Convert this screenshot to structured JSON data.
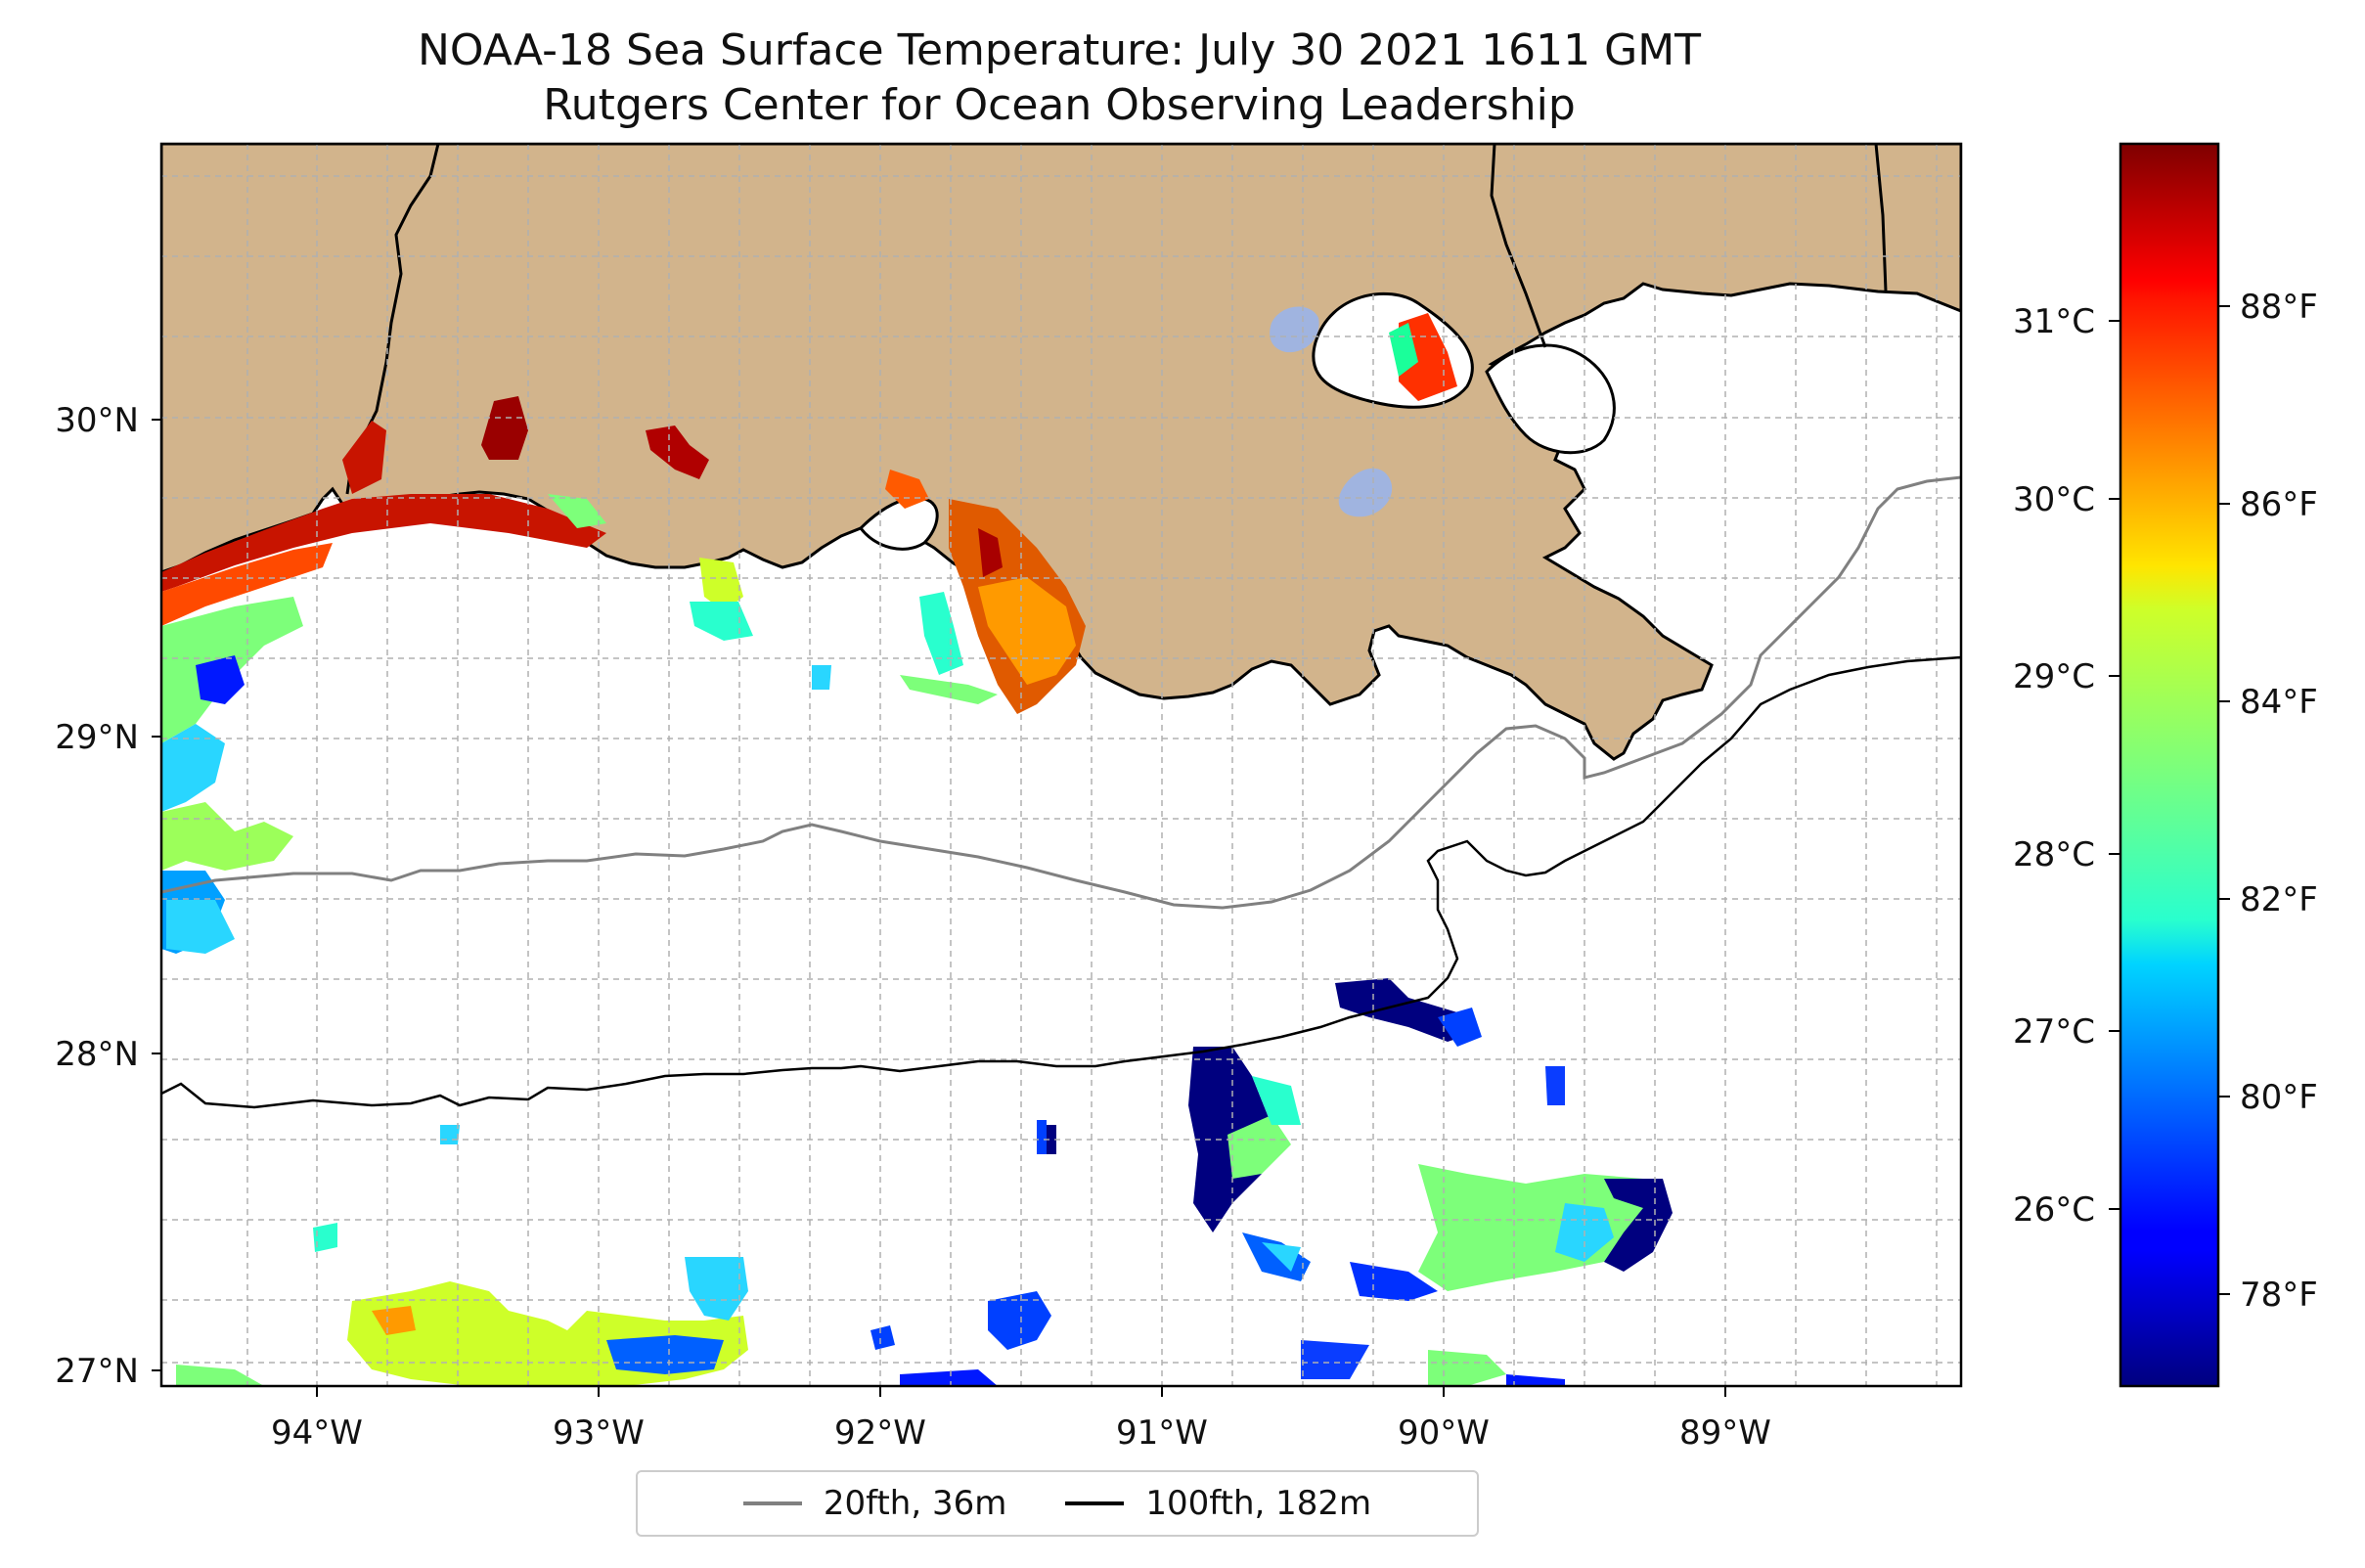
{
  "title": {
    "line1": "NOAA-18 Sea Surface Temperature: July 30 2021 1611 GMT",
    "line2": "Rutgers Center for Ocean Observing Leadership"
  },
  "map": {
    "lon_range": [
      -94.55,
      -88.2
    ],
    "lat_range": [
      26.93,
      30.85
    ],
    "x_ticks": [
      {
        "value": -94,
        "label": "94°W"
      },
      {
        "value": -93,
        "label": "93°W"
      },
      {
        "value": -92,
        "label": "92°W"
      },
      {
        "value": -91,
        "label": "91°W"
      },
      {
        "value": -90,
        "label": "90°W"
      },
      {
        "value": -89,
        "label": "89°W"
      }
    ],
    "y_ticks": [
      {
        "value": 27,
        "label": "27°N"
      },
      {
        "value": 28,
        "label": "28°N"
      },
      {
        "value": 29,
        "label": "29°N"
      },
      {
        "value": 30,
        "label": "30°N"
      }
    ],
    "grid": true,
    "land_color": "#d2b48c",
    "water_color": "#ffffff",
    "lake_color": "#a0b4e0"
  },
  "colorbar": {
    "colormap": "jet",
    "celsius_range": [
      25.0,
      32.0
    ],
    "celsius_ticks": [
      {
        "value": 26,
        "label": "26°C"
      },
      {
        "value": 27,
        "label": "27°C"
      },
      {
        "value": 28,
        "label": "28°C"
      },
      {
        "value": 29,
        "label": "29°C"
      },
      {
        "value": 30,
        "label": "30°C"
      },
      {
        "value": 31,
        "label": "31°C"
      }
    ],
    "fahrenheit_ticks": [
      {
        "value": 78,
        "label": "78°F"
      },
      {
        "value": 80,
        "label": "80°F"
      },
      {
        "value": 82,
        "label": "82°F"
      },
      {
        "value": 84,
        "label": "84°F"
      },
      {
        "value": 86,
        "label": "86°F"
      },
      {
        "value": 88,
        "label": "88°F"
      }
    ]
  },
  "legend": {
    "placement": "bottom-center",
    "items": [
      {
        "label": "20fth, 36m",
        "color": "#808080"
      },
      {
        "label": "100fth, 182m",
        "color": "#000000"
      }
    ]
  }
}
